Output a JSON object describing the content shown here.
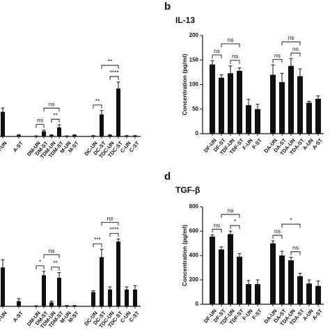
{
  "chart_data": [
    {
      "type": "bar",
      "color": "#111111",
      "categories": [
        "A-UN",
        "A-ST",
        "DM-UN",
        "DM-ST",
        "TDM-UN",
        "TDM-ST",
        "M-UN",
        "M-ST",
        "DC-UN",
        "DC-ST",
        "TDC-UN",
        "TDC-ST",
        "C-UN",
        "C-ST"
      ],
      "values": [
        19,
        1,
        0.3,
        4,
        1,
        7,
        0.3,
        1,
        0.5,
        17,
        1,
        37,
        0.5,
        0.5
      ],
      "errors": [
        3,
        0.5,
        0.2,
        1,
        0.3,
        2,
        0.2,
        0.3,
        0.2,
        3,
        0.3,
        5,
        0.2,
        0.2
      ],
      "ylim": [
        0,
        100
      ],
      "annotations": [
        {
          "text": "ns",
          "from": "DM-UN",
          "to": "DM-ST"
        },
        {
          "text": "**",
          "from": "TDM-UN",
          "to": "TDM-ST"
        },
        {
          "text": "ns",
          "from": "DM-ST",
          "to": "TDM-ST"
        },
        {
          "text": "**",
          "from": "DC-UN",
          "to": "DC-ST"
        },
        {
          "text": "****",
          "from": "TDC-UN",
          "to": "TDC-ST"
        },
        {
          "text": "**",
          "from": "DC-ST",
          "to": "TDC-ST"
        }
      ]
    },
    {
      "type": "bar",
      "color": "#111111",
      "panel_label": "b",
      "title": "IL-13",
      "y_label": "Concentration (pg/ml)",
      "categories": [
        "DF-UN",
        "DF-ST",
        "TDF-UN",
        "TDF-ST",
        "F-UN",
        "F-ST",
        "DA-UN",
        "DA-ST",
        "TDA-UN",
        "TDA-ST",
        "A-UN",
        "A-ST"
      ],
      "values": [
        141,
        114,
        123,
        128,
        58,
        50,
        120,
        105,
        138,
        117,
        63,
        71
      ],
      "errors": [
        8,
        6,
        15,
        6,
        12,
        10,
        20,
        18,
        15,
        15,
        3,
        6
      ],
      "ylim": [
        0,
        200
      ],
      "yticks": [
        0,
        50,
        100,
        150,
        200
      ],
      "annotations": [
        {
          "text": "ns",
          "from": "DF-UN",
          "to": "DF-ST"
        },
        {
          "text": "ns",
          "from": "TDF-UN",
          "to": "TDF-ST"
        },
        {
          "text": "ns",
          "from": "DF-ST",
          "to": "TDF-ST"
        },
        {
          "text": "ns",
          "from": "DA-UN",
          "to": "DA-ST"
        },
        {
          "text": "ns",
          "from": "TDA-UN",
          "to": "TDA-ST"
        },
        {
          "text": "ns",
          "from": "DA-ST",
          "to": "TDA-ST"
        }
      ]
    },
    {
      "type": "bar",
      "color": "#111111",
      "categories": [
        "A-UN",
        "A-ST",
        "DM-UN",
        "DM-ST",
        "TDM-UN",
        "TDM-ST",
        "M-UN",
        "M-ST",
        "DC-UN",
        "DC-ST",
        "TDC-UN",
        "TDC-ST",
        "C-UN",
        "C-ST"
      ],
      "values": [
        30,
        4,
        0.3,
        24,
        3,
        22,
        0.5,
        0.5,
        11,
        38,
        13,
        50,
        13,
        13
      ],
      "errors": [
        6,
        2,
        0.2,
        3,
        1,
        4,
        0.2,
        0.2,
        1,
        6,
        2,
        2,
        2,
        3
      ],
      "ylim": [
        0,
        100
      ],
      "annotations": [
        {
          "text": "*",
          "from": "DM-UN",
          "to": "DM-ST"
        },
        {
          "text": "**",
          "from": "TDM-UN",
          "to": "TDM-ST"
        },
        {
          "text": "ns",
          "from": "DM-ST",
          "to": "TDM-ST"
        },
        {
          "text": "***",
          "from": "DC-UN",
          "to": "DC-ST"
        },
        {
          "text": "****",
          "from": "TDC-UN",
          "to": "TDC-ST"
        },
        {
          "text": "ns",
          "from": "DC-ST",
          "to": "TDC-ST"
        }
      ]
    },
    {
      "type": "bar",
      "color": "#111111",
      "panel_label": "d",
      "title": "TGF-β",
      "y_label": "Concentration (pg/ml)",
      "categories": [
        "DF-UN",
        "DF-ST",
        "TDF-UN",
        "TDF-ST",
        "F-UN",
        "F-ST",
        "DA-UN",
        "DA-ST",
        "TDA-UN",
        "TDA-ST",
        "A-UN",
        "A-ST"
      ],
      "values": [
        555,
        450,
        575,
        390,
        165,
        165,
        500,
        400,
        360,
        230,
        170,
        150
      ],
      "errors": [
        15,
        20,
        25,
        25,
        30,
        35,
        20,
        35,
        25,
        25,
        30,
        40
      ],
      "ylim": [
        0,
        800
      ],
      "yticks": [
        0,
        200,
        400,
        600,
        800
      ],
      "annotations": [
        {
          "text": "ns",
          "from": "DF-UN",
          "to": "DF-ST"
        },
        {
          "text": "*",
          "from": "TDF-UN",
          "to": "TDF-ST"
        },
        {
          "text": "ns",
          "from": "DF-ST",
          "to": "TDF-ST"
        },
        {
          "text": "ns",
          "from": "DA-UN",
          "to": "DA-ST"
        },
        {
          "text": "ns",
          "from": "TDA-UN",
          "to": "TDA-ST"
        },
        {
          "text": "*",
          "from": "DA-ST",
          "to": "TDA-ST"
        }
      ]
    }
  ]
}
